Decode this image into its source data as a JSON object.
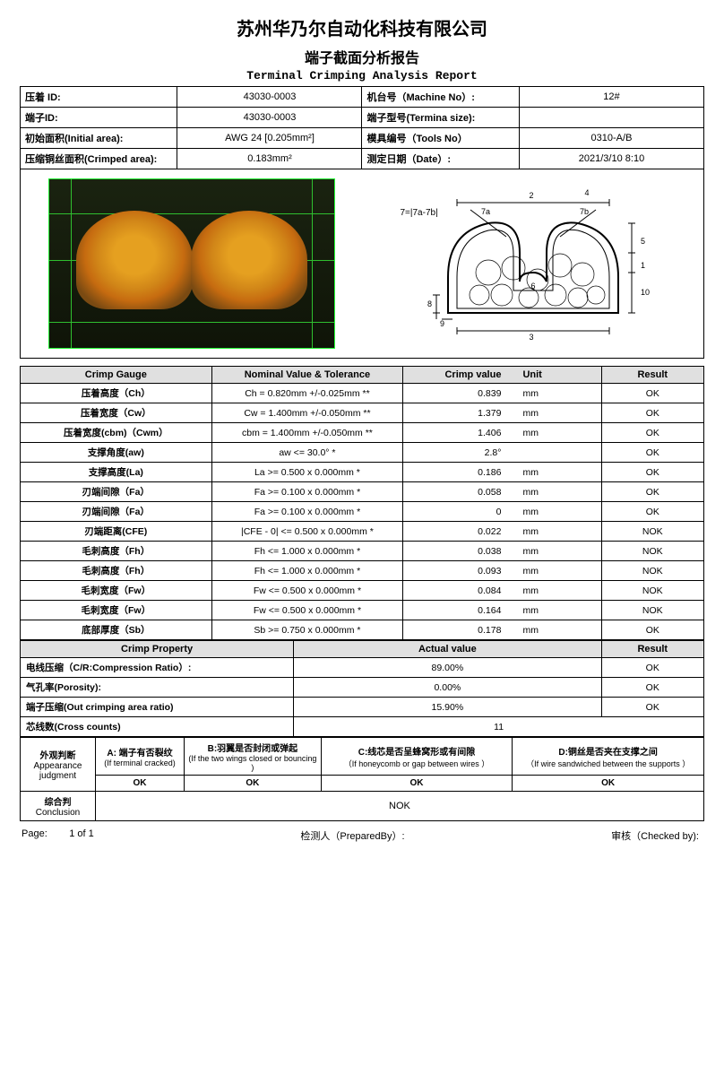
{
  "company": "苏州华乃尔自动化科技有限公司",
  "title_cn": "端子截面分析报告",
  "title_en": "Terminal Crimping Analysis Report",
  "hdr": {
    "r1c1": "压着 ID:",
    "r1v1": "43030-0003",
    "r1c2": "机台号（Machine No）:",
    "r1v2": "12#",
    "r2c1": "端子ID:",
    "r2v1": "43030-0003",
    "r2c2": "端子型号(Termina size):",
    "r2v2": "",
    "r3c1": "初始面积(Initial area):",
    "r3v1": "AWG  24 [0.205mm²]",
    "r3c2": "模具编号（Tools No）",
    "r3v2": "0310-A/B",
    "r4c1": "压缩铜丝面积(Crimped area):",
    "r4v1": "0.183mm²",
    "r4c2": "测定日期（Date）:",
    "r4v2": "2021/3/10 8:10"
  },
  "diagram_label": "7=|7a-7b|",
  "gauge_header": {
    "c1": "Crimp Gauge",
    "c2": "Nominal Value & Tolerance",
    "c3": "Crimp value",
    "c4": "Unit",
    "c5": "Result"
  },
  "gauge": [
    {
      "n": "压着高度（Ch）",
      "nom": "Ch = 0.820mm +/-0.025mm **",
      "v": "0.839",
      "u": "mm",
      "r": "OK"
    },
    {
      "n": "压着宽度（Cw）",
      "nom": "Cw = 1.400mm +/-0.050mm **",
      "v": "1.379",
      "u": "mm",
      "r": "OK"
    },
    {
      "n": "压着宽度(cbm)（Cwm）",
      "nom": "cbm = 1.400mm +/-0.050mm **",
      "v": "1.406",
      "u": "mm",
      "r": "OK"
    },
    {
      "n": "支撑角度(aw)",
      "nom": "aw <= 30.0° *",
      "v": "2.8°",
      "u": "",
      "r": "OK"
    },
    {
      "n": "支撑高度(La)",
      "nom": "La >= 0.500 x 0.000mm *",
      "v": "0.186",
      "u": "mm",
      "r": "OK"
    },
    {
      "n": "刃端间隙（Fa）",
      "nom": "Fa >= 0.100 x 0.000mm *",
      "v": "0.058",
      "u": "mm",
      "r": "OK"
    },
    {
      "n": "刃端间隙（Fa）",
      "nom": "Fa >= 0.100 x 0.000mm *",
      "v": "0",
      "u": "mm",
      "r": "OK"
    },
    {
      "n": "刃端距离(CFE)",
      "nom": "|CFE - 0| <= 0.500 x 0.000mm *",
      "v": "0.022",
      "u": "mm",
      "r": "NOK"
    },
    {
      "n": "毛刺高度（Fh）",
      "nom": "Fh <= 1.000 x 0.000mm *",
      "v": "0.038",
      "u": "mm",
      "r": "NOK"
    },
    {
      "n": "毛刺高度（Fh）",
      "nom": "Fh <= 1.000 x 0.000mm *",
      "v": "0.093",
      "u": "mm",
      "r": "NOK"
    },
    {
      "n": "毛刺宽度（Fw）",
      "nom": "Fw <= 0.500 x 0.000mm *",
      "v": "0.084",
      "u": "mm",
      "r": "NOK"
    },
    {
      "n": "毛刺宽度（Fw）",
      "nom": "Fw <= 0.500 x 0.000mm *",
      "v": "0.164",
      "u": "mm",
      "r": "NOK"
    },
    {
      "n": "底部厚度（Sb）",
      "nom": "Sb >= 0.750 x 0.000mm *",
      "v": "0.178",
      "u": "mm",
      "r": "OK"
    }
  ],
  "prop_header": {
    "c1": "Crimp Property",
    "c2": "Actual value",
    "c3": "Result"
  },
  "prop": [
    {
      "n": "电线压缩（C/R:Compression Ratio）:",
      "v": "89.00%",
      "r": "OK"
    },
    {
      "n": "气孔率(Porosity):",
      "v": "0.00%",
      "r": "OK"
    },
    {
      "n": "端子压缩(Out crimping area ratio)",
      "v": "15.90%",
      "r": "OK"
    },
    {
      "n": "芯线数(Cross counts)",
      "v": "11",
      "r": ""
    }
  ],
  "appearance": {
    "head": "外观判断",
    "head_en": "Appearance judgment",
    "A": {
      "t": "A: 端子有否裂纹",
      "s": "(If terminal cracked)",
      "v": "OK"
    },
    "B": {
      "t": "B:羽翼是否封闭或弹起",
      "s": "(If the two wings closed or bouncing )",
      "v": "OK"
    },
    "C": {
      "t": "C:线芯是否呈蜂窝形或有间隙",
      "s": "（If honeycomb or gap between wires ）",
      "v": "OK"
    },
    "D": {
      "t": "D:铜丝是否夹在支撑之间",
      "s": "（If wire sandwiched between the supports ）",
      "v": "OK"
    }
  },
  "conclusion": {
    "lab": "综合判",
    "lab_en": "Conclusion",
    "v": "NOK"
  },
  "footer": {
    "page_l": "Page:",
    "page_v": "1 of 1",
    "prep": "检测人（PreparedBy）:",
    "check": "审核（Checked by):"
  }
}
